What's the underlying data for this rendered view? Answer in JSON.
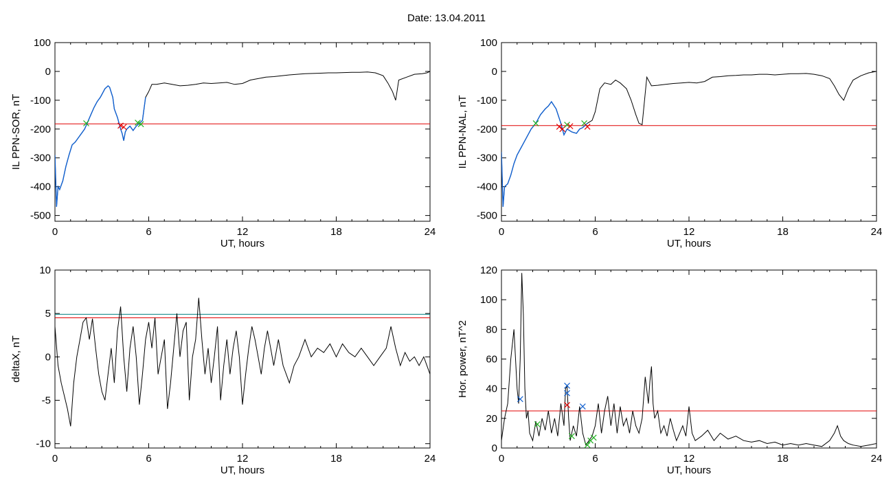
{
  "figure": {
    "title": "Date:  13.04.2011"
  },
  "colors": {
    "trace": "#000000",
    "threshold": "#e00000",
    "highlight": "#1060d0",
    "upper_threshold": "#008080",
    "marker_red": "#e00000",
    "marker_green": "#20b020",
    "marker_blue": "#1060d0"
  },
  "chart_data": [
    {
      "id": "il-sor",
      "type": "line",
      "xlabel": "UT, hours",
      "ylabel": "IL PPN-SOR, nT",
      "xlim": [
        0,
        24
      ],
      "ylim": [
        -520,
        100
      ],
      "xticks": [
        0,
        6,
        12,
        18,
        24
      ],
      "yticks": [
        -500,
        -400,
        -300,
        -200,
        -100,
        0,
        100
      ],
      "thresholds": [
        {
          "y": -182,
          "color": "#e00000"
        }
      ],
      "highlight_range": [
        0,
        5.8
      ],
      "series": [
        {
          "x": [
            0,
            0.1,
            0.2,
            0.3,
            0.5,
            0.7,
            0.9,
            1.1,
            1.3,
            1.5,
            1.7,
            1.9,
            2.1,
            2.3,
            2.5,
            2.7,
            2.9,
            3.0,
            3.2,
            3.4,
            3.5,
            3.7,
            3.8,
            4.0,
            4.1,
            4.2,
            4.3,
            4.4,
            4.5,
            4.6,
            4.8,
            5.0,
            5.2,
            5.4,
            5.6,
            5.8,
            6.0,
            6.2,
            6.5,
            7.0,
            7.5,
            8.0,
            8.5,
            9.0,
            9.5,
            10.0,
            10.5,
            11.0,
            11.5,
            12.0,
            12.5,
            13.0,
            13.5,
            14.0,
            14.5,
            15.0,
            15.5,
            16.0,
            16.5,
            17.0,
            17.5,
            18.0,
            18.5,
            19.0,
            19.5,
            20.0,
            20.5,
            21.0,
            21.3,
            21.6,
            21.8,
            22.0,
            22.5,
            23.0,
            23.5,
            23.8,
            24.0
          ],
          "y": [
            -290,
            -470,
            -400,
            -410,
            -380,
            -330,
            -290,
            -255,
            -245,
            -230,
            -215,
            -200,
            -175,
            -150,
            -125,
            -105,
            -90,
            -80,
            -60,
            -50,
            -55,
            -90,
            -130,
            -160,
            -180,
            -200,
            -215,
            -240,
            -210,
            -200,
            -190,
            -205,
            -190,
            -180,
            -170,
            -90,
            -70,
            -45,
            -45,
            -40,
            -45,
            -50,
            -48,
            -45,
            -40,
            -42,
            -40,
            -38,
            -45,
            -42,
            -30,
            -25,
            -20,
            -18,
            -15,
            -12,
            -10,
            -8,
            -7,
            -6,
            -5,
            -5,
            -4,
            -3,
            -3,
            -2,
            -5,
            -15,
            -40,
            -70,
            -100,
            -30,
            -20,
            -10,
            -8,
            -5,
            0
          ]
        }
      ],
      "markers": [
        {
          "x": 2.0,
          "y": -180,
          "color": "#20b020"
        },
        {
          "x": 4.2,
          "y": -188,
          "color": "#e00000"
        },
        {
          "x": 4.4,
          "y": -193,
          "color": "#e00000"
        },
        {
          "x": 5.3,
          "y": -178,
          "color": "#20b020"
        },
        {
          "x": 5.5,
          "y": -183,
          "color": "#20b020"
        }
      ]
    },
    {
      "id": "il-nal",
      "type": "line",
      "xlabel": "UT, hours",
      "ylabel": "IL PPN-NAL, nT",
      "xlim": [
        0,
        24
      ],
      "ylim": [
        -520,
        100
      ],
      "xticks": [
        0,
        6,
        12,
        18,
        24
      ],
      "yticks": [
        -500,
        -400,
        -300,
        -200,
        -100,
        0,
        100
      ],
      "thresholds": [
        {
          "y": -188,
          "color": "#e00000"
        }
      ],
      "highlight_range": [
        0,
        5.6
      ],
      "series": [
        {
          "x": [
            0,
            0.1,
            0.2,
            0.4,
            0.6,
            0.8,
            1.0,
            1.3,
            1.6,
            1.9,
            2.2,
            2.5,
            2.8,
            3.0,
            3.2,
            3.5,
            3.8,
            4.0,
            4.2,
            4.5,
            4.8,
            5.0,
            5.2,
            5.5,
            5.8,
            6.0,
            6.3,
            6.6,
            7.0,
            7.3,
            7.6,
            8.0,
            8.3,
            8.6,
            8.8,
            9.0,
            9.3,
            9.6,
            10.0,
            10.5,
            11.0,
            11.5,
            12.0,
            12.5,
            13.0,
            13.5,
            14.0,
            14.5,
            15.0,
            15.5,
            16.0,
            16.5,
            17.0,
            17.5,
            18.0,
            18.5,
            19.0,
            19.5,
            20.0,
            20.5,
            21.0,
            21.3,
            21.6,
            21.9,
            22.2,
            22.5,
            23.0,
            23.5,
            24.0
          ],
          "y": [
            -280,
            -470,
            -400,
            -390,
            -360,
            -320,
            -290,
            -260,
            -230,
            -200,
            -180,
            -150,
            -130,
            -120,
            -105,
            -130,
            -180,
            -220,
            -200,
            -210,
            -215,
            -200,
            -195,
            -180,
            -170,
            -140,
            -60,
            -40,
            -45,
            -30,
            -40,
            -60,
            -100,
            -150,
            -180,
            -185,
            -20,
            -50,
            -48,
            -45,
            -42,
            -40,
            -38,
            -40,
            -35,
            -20,
            -18,
            -15,
            -14,
            -12,
            -12,
            -10,
            -10,
            -12,
            -10,
            -8,
            -8,
            -7,
            -10,
            -15,
            -25,
            -50,
            -80,
            -100,
            -60,
            -30,
            -15,
            -5,
            0
          ]
        }
      ],
      "markers": [
        {
          "x": 2.2,
          "y": -180,
          "color": "#20b020"
        },
        {
          "x": 3.7,
          "y": -192,
          "color": "#e00000"
        },
        {
          "x": 3.9,
          "y": -200,
          "color": "#e00000"
        },
        {
          "x": 4.2,
          "y": -185,
          "color": "#20b020"
        },
        {
          "x": 4.4,
          "y": -190,
          "color": "#e00000"
        },
        {
          "x": 5.3,
          "y": -180,
          "color": "#20b020"
        },
        {
          "x": 5.5,
          "y": -192,
          "color": "#e00000"
        }
      ]
    },
    {
      "id": "deltax",
      "type": "line",
      "xlabel": "UT, hours",
      "ylabel": "deltaX, nT",
      "xlim": [
        0,
        24
      ],
      "ylim": [
        -10.5,
        10
      ],
      "xticks": [
        0,
        6,
        12,
        18,
        24
      ],
      "yticks": [
        -10,
        -5,
        0,
        5,
        10
      ],
      "thresholds": [
        {
          "y": 4.9,
          "color": "#008080"
        },
        {
          "y": 4.5,
          "color": "#e00000"
        }
      ],
      "series": [
        {
          "x": [
            0,
            0.2,
            0.4,
            0.6,
            0.8,
            1.0,
            1.2,
            1.4,
            1.6,
            1.8,
            2.0,
            2.2,
            2.4,
            2.6,
            2.8,
            3.0,
            3.2,
            3.4,
            3.6,
            3.8,
            4.0,
            4.2,
            4.4,
            4.6,
            4.8,
            5.0,
            5.2,
            5.4,
            5.6,
            5.8,
            6.0,
            6.2,
            6.4,
            6.6,
            6.8,
            7.0,
            7.2,
            7.4,
            7.6,
            7.8,
            8.0,
            8.2,
            8.4,
            8.6,
            8.8,
            9.0,
            9.2,
            9.4,
            9.6,
            9.8,
            10.0,
            10.2,
            10.4,
            10.6,
            10.8,
            11.0,
            11.2,
            11.4,
            11.6,
            11.8,
            12.0,
            12.2,
            12.4,
            12.6,
            12.8,
            13.0,
            13.2,
            13.4,
            13.6,
            13.8,
            14.0,
            14.3,
            14.6,
            15.0,
            15.3,
            15.6,
            16.0,
            16.4,
            16.8,
            17.2,
            17.6,
            18.0,
            18.4,
            18.8,
            19.2,
            19.6,
            20.0,
            20.4,
            20.8,
            21.2,
            21.5,
            21.8,
            22.1,
            22.4,
            22.7,
            23.0,
            23.3,
            23.6,
            24.0
          ],
          "y": [
            3.5,
            -1,
            -3,
            -4.5,
            -6,
            -8,
            -3,
            0,
            2,
            4,
            4.5,
            2,
            4.4,
            1,
            -2,
            -4,
            -5,
            -2,
            1,
            -3,
            3,
            5.8,
            0,
            -4,
            1,
            3.5,
            0,
            -5.5,
            -2,
            2,
            4,
            1,
            4.5,
            -2,
            0,
            2,
            -6,
            -3,
            1,
            5,
            0,
            3,
            4,
            -5,
            0,
            2,
            6.8,
            2,
            -2,
            1,
            -3,
            0,
            3.5,
            -5,
            -1,
            2,
            -2,
            1,
            3,
            0,
            -5.5,
            -2,
            1,
            3.5,
            2,
            0,
            -2,
            1,
            3,
            1,
            -1,
            2,
            -1,
            -3,
            -1,
            0,
            2,
            0,
            1,
            0.5,
            1.5,
            0,
            1.5,
            0.5,
            0,
            1,
            0,
            -1,
            0,
            1,
            3.5,
            1,
            -1,
            0.5,
            -0.5,
            0,
            -1,
            0,
            -2
          ]
        }
      ]
    },
    {
      "id": "hor-power",
      "type": "line",
      "xlabel": "UT, hours",
      "ylabel": "Hor. power, nT^2",
      "xlim": [
        0,
        24
      ],
      "ylim": [
        0,
        120
      ],
      "xticks": [
        0,
        6,
        12,
        18,
        24
      ],
      "yticks": [
        0,
        20,
        40,
        60,
        80,
        100,
        120
      ],
      "thresholds": [
        {
          "y": 25,
          "color": "#e00000"
        }
      ],
      "series": [
        {
          "x": [
            0,
            0.2,
            0.4,
            0.6,
            0.8,
            0.9,
            1.0,
            1.1,
            1.2,
            1.3,
            1.4,
            1.5,
            1.6,
            1.7,
            1.8,
            2.0,
            2.2,
            2.4,
            2.6,
            2.8,
            3.0,
            3.2,
            3.4,
            3.6,
            3.8,
            4.0,
            4.1,
            4.2,
            4.3,
            4.4,
            4.6,
            4.8,
            5.0,
            5.2,
            5.4,
            5.6,
            5.8,
            6.0,
            6.2,
            6.4,
            6.6,
            6.8,
            7.0,
            7.2,
            7.4,
            7.6,
            7.8,
            8.0,
            8.2,
            8.4,
            8.6,
            8.8,
            9.0,
            9.2,
            9.4,
            9.5,
            9.6,
            9.7,
            9.8,
            10.0,
            10.2,
            10.4,
            10.6,
            10.8,
            11.0,
            11.2,
            11.4,
            11.6,
            11.8,
            12.0,
            12.2,
            12.4,
            12.8,
            13.2,
            13.6,
            14.0,
            14.5,
            15.0,
            15.5,
            16.0,
            16.5,
            17.0,
            17.5,
            18.0,
            18.5,
            19.0,
            19.5,
            20.0,
            20.5,
            21.0,
            21.3,
            21.5,
            21.7,
            21.9,
            22.2,
            22.5,
            23.0,
            23.5,
            24.0
          ],
          "y": [
            5,
            20,
            30,
            60,
            80,
            60,
            40,
            30,
            60,
            118,
            90,
            40,
            20,
            25,
            10,
            5,
            18,
            8,
            20,
            12,
            25,
            10,
            20,
            8,
            30,
            15,
            40,
            42,
            20,
            5,
            15,
            8,
            28,
            10,
            2,
            5,
            8,
            15,
            30,
            10,
            25,
            35,
            15,
            30,
            10,
            28,
            15,
            20,
            10,
            25,
            15,
            10,
            20,
            48,
            30,
            45,
            55,
            30,
            20,
            25,
            10,
            15,
            8,
            20,
            12,
            5,
            10,
            15,
            8,
            28,
            10,
            5,
            8,
            12,
            5,
            10,
            6,
            8,
            5,
            4,
            5,
            3,
            4,
            2,
            3,
            2,
            3,
            2,
            1,
            5,
            10,
            15,
            8,
            5,
            3,
            2,
            1,
            2,
            3
          ]
        }
      ],
      "markers": [
        {
          "x": 1.2,
          "y": 33,
          "color": "#1060d0"
        },
        {
          "x": 2.3,
          "y": 16,
          "color": "#20b020"
        },
        {
          "x": 4.2,
          "y": 42,
          "color": "#1060d0"
        },
        {
          "x": 4.2,
          "y": 37,
          "color": "#1060d0"
        },
        {
          "x": 4.2,
          "y": 29,
          "color": "#e00000"
        },
        {
          "x": 4.5,
          "y": 8,
          "color": "#20b020"
        },
        {
          "x": 5.2,
          "y": 28,
          "color": "#1060d0"
        },
        {
          "x": 5.5,
          "y": 2,
          "color": "#20b020"
        },
        {
          "x": 5.7,
          "y": 5,
          "color": "#20b020"
        },
        {
          "x": 5.9,
          "y": 7,
          "color": "#20b020"
        }
      ]
    }
  ]
}
